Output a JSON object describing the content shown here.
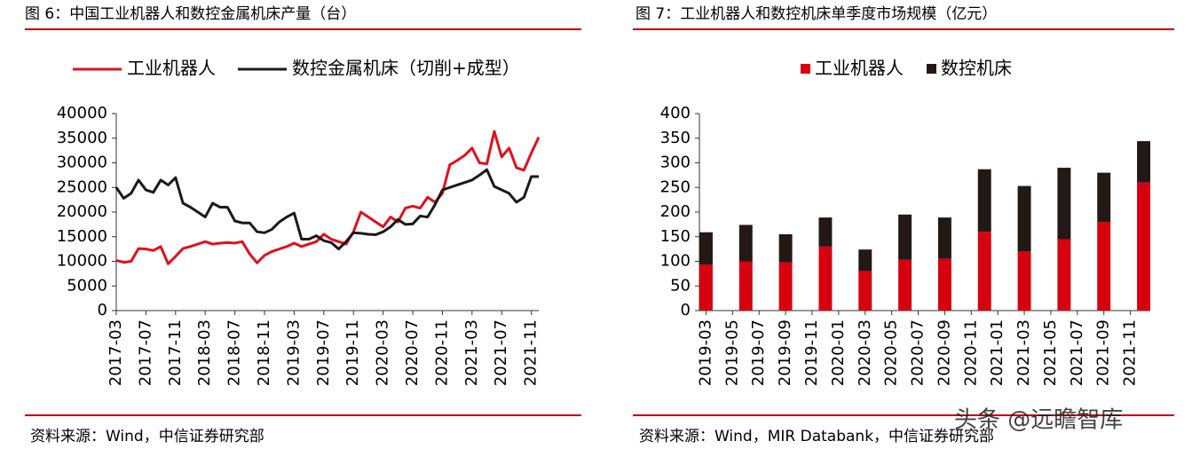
{
  "chart_data": [
    {
      "type": "line",
      "title": "图 6：中国工业机器人和数控金属机床产量（台）",
      "source": "资料来源：Wind，中信证券研究部",
      "categories": [
        "2017-03",
        null,
        null,
        null,
        "2017-07",
        null,
        null,
        null,
        "2017-11",
        null,
        null,
        null,
        "2018-03",
        null,
        null,
        null,
        "2018-07",
        null,
        null,
        null,
        "2018-11",
        null,
        null,
        null,
        "2019-03",
        null,
        null,
        null,
        "2019-07",
        null,
        null,
        null,
        "2019-11",
        null,
        null,
        null,
        "2020-03",
        null,
        null,
        null,
        "2020-07",
        null,
        null,
        null,
        "2020-11",
        null,
        null,
        null,
        "2021-03",
        null,
        null,
        null,
        "2021-07",
        null,
        null,
        null,
        "2021-11",
        null
      ],
      "series": [
        {
          "name": "工业机器人",
          "color": "#e0101e",
          "values": [
            10200,
            9800,
            10000,
            12600,
            12500,
            12200,
            13000,
            9500,
            11000,
            12600,
            13000,
            13500,
            14000,
            13500,
            13700,
            13800,
            13700,
            14000,
            11500,
            9700,
            11200,
            12000,
            12500,
            13000,
            13700,
            13000,
            13500,
            14000,
            15500,
            14500,
            14000,
            13500,
            16000,
            20000,
            19000,
            18000,
            17000,
            19000,
            18000,
            20800,
            21200,
            20800,
            23000,
            22000,
            23800,
            29600,
            30500,
            31500,
            33000,
            30000,
            29800,
            36400,
            31200,
            33000,
            29000,
            28500,
            32000,
            35200
          ]
        },
        {
          "name": "数控金属机床（切削+成型）",
          "color": "#1a1a1a",
          "values": [
            25000,
            22800,
            23800,
            26500,
            24500,
            24000,
            26500,
            25500,
            27000,
            21800,
            21000,
            20000,
            19000,
            21800,
            21000,
            21000,
            18200,
            17800,
            17800,
            16000,
            15800,
            16500,
            18000,
            19000,
            19800,
            14500,
            14500,
            15200,
            14200,
            13800,
            12500,
            14000,
            15800,
            15700,
            15500,
            15400,
            16000,
            17000,
            18500,
            17500,
            17600,
            19200,
            19000,
            21500,
            24500,
            25000,
            25500,
            26000,
            26500,
            27500,
            28600,
            25200,
            24500,
            23800,
            22000,
            23000,
            27200,
            27200
          ]
        }
      ],
      "ylim": [
        0,
        40000
      ],
      "yticks": [
        0,
        5000,
        10000,
        15000,
        20000,
        25000,
        30000,
        35000,
        40000
      ]
    },
    {
      "type": "bar",
      "title": "图 7：工业机器人和数控机床单季度市场规模（亿元）",
      "source": "资料来源：Wind，MIR Databank，中信证券研究部",
      "stacked": true,
      "categories": [
        "2019-03",
        null,
        "2019-05",
        null,
        "2019-07",
        null,
        "2019-09",
        null,
        "2019-11",
        null,
        "2020-01",
        null,
        "2020-03",
        null,
        "2020-05",
        null,
        "2020-07",
        null,
        "2020-09",
        null,
        "2020-11",
        null,
        "2021-01",
        null,
        "2021-03",
        null,
        "2021-05",
        null,
        "2021-07",
        null,
        "2021-09",
        null,
        "2021-11",
        null
      ],
      "series": [
        {
          "name": "工业机器人",
          "color": "#d7000f",
          "values": [
            93,
            null,
            null,
            100,
            null,
            null,
            98,
            null,
            null,
            130,
            null,
            null,
            80,
            null,
            null,
            103,
            null,
            null,
            105,
            null,
            null,
            160,
            null,
            null,
            120,
            null,
            null,
            145,
            null,
            null,
            180,
            null,
            null,
            260
          ]
        },
        {
          "name": "数控机床",
          "color": "#231815",
          "values": [
            66,
            null,
            null,
            74,
            null,
            null,
            57,
            null,
            null,
            59,
            null,
            null,
            44,
            null,
            null,
            92,
            null,
            null,
            84,
            null,
            null,
            127,
            null,
            null,
            133,
            null,
            null,
            145,
            null,
            null,
            100,
            null,
            null,
            84
          ]
        }
      ],
      "ylim": [
        0,
        400
      ],
      "yticks": [
        0,
        50,
        100,
        150,
        200,
        250,
        300,
        350,
        400
      ]
    }
  ],
  "watermark": "头条 @远瞻智库"
}
